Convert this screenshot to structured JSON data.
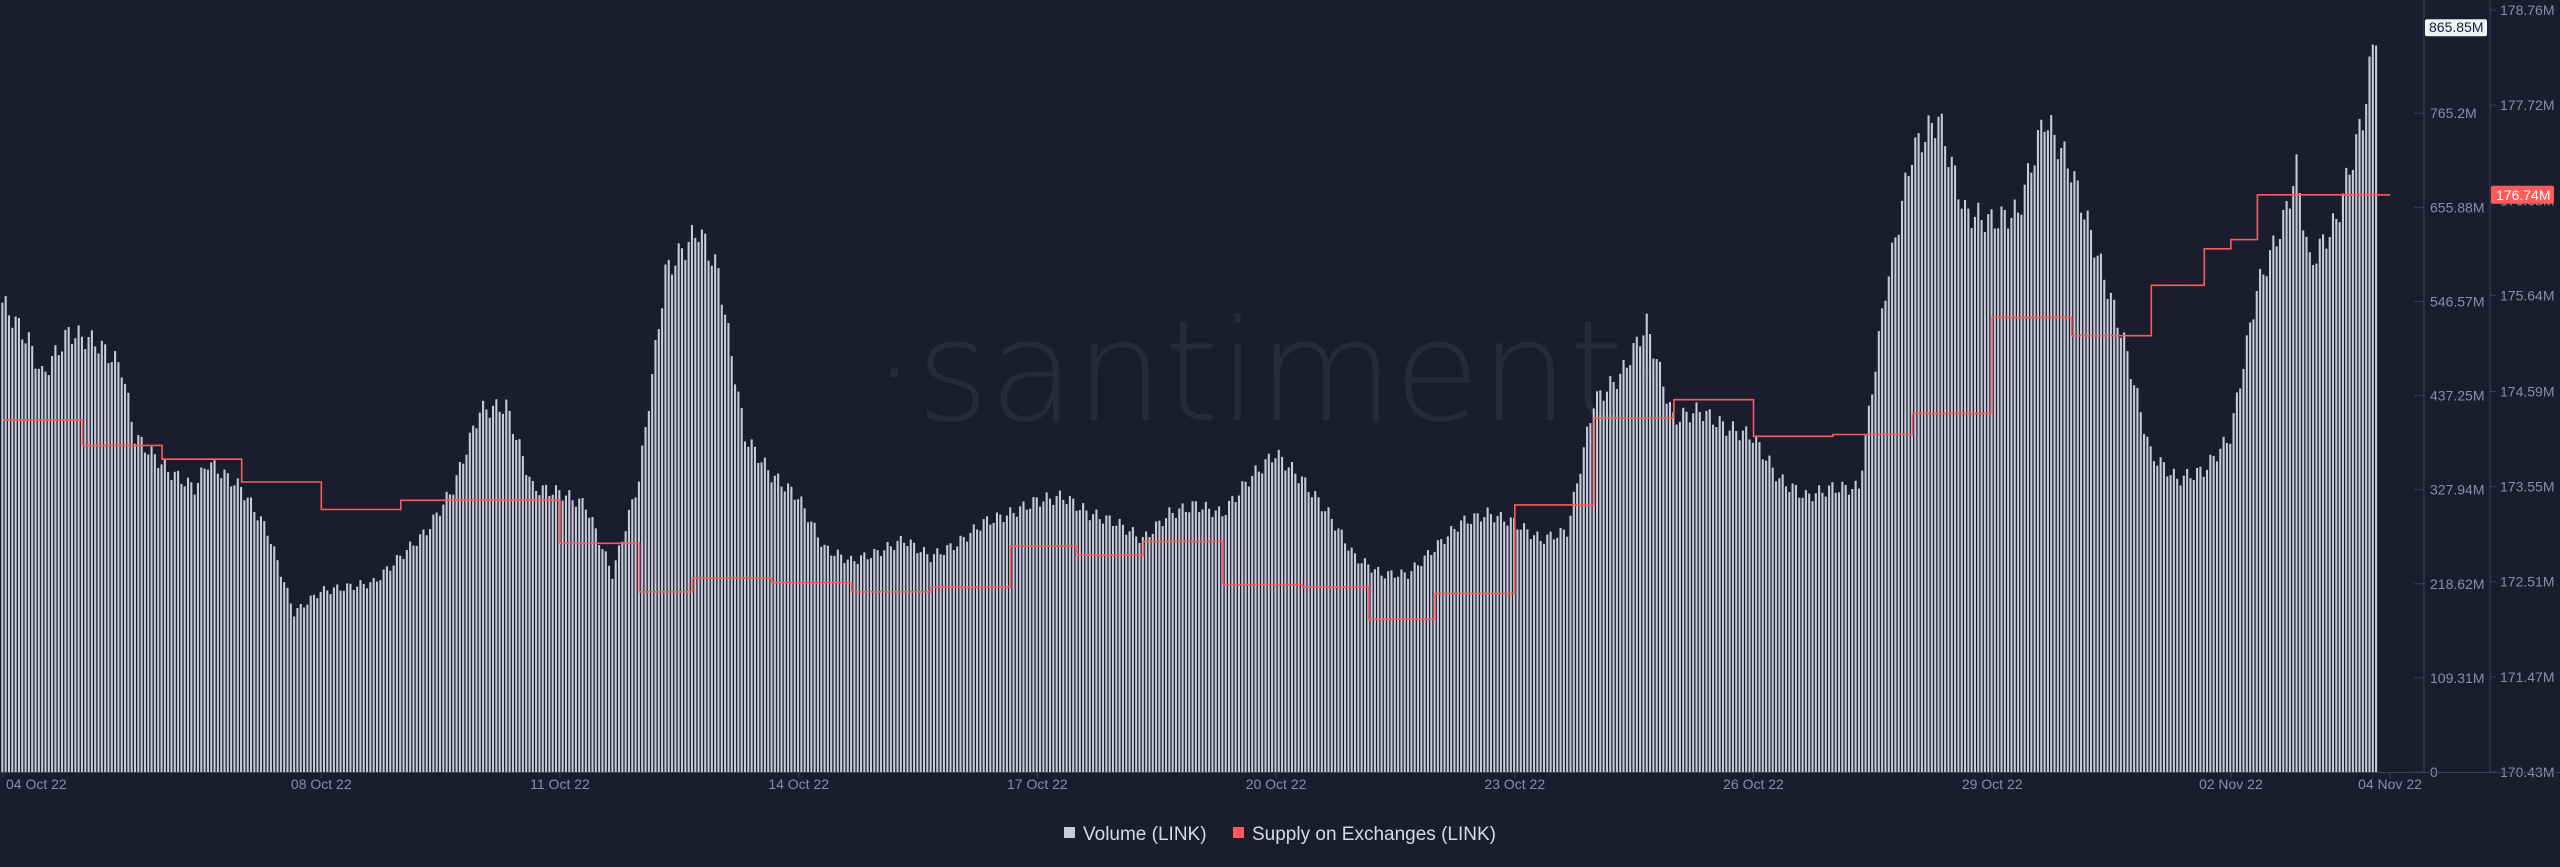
{
  "watermark": "·santiment·",
  "colors": {
    "background": "#191d2e",
    "volume": "#c9cbd9",
    "supply": "#ff5b5b",
    "axis_text": "#8a8fa3",
    "axis_line": "#3a3f52"
  },
  "chart_data": {
    "type": "bar",
    "x_tick_labels": [
      "04 Oct 22",
      "08 Oct 22",
      "11 Oct 22",
      "14 Oct 22",
      "17 Oct 22",
      "20 Oct 22",
      "23 Oct 22",
      "26 Oct 22",
      "29 Oct 22",
      "02 Nov 22",
      "04 Nov 22"
    ],
    "x_ticks_hours": [
      0,
      96,
      168,
      240,
      312,
      384,
      456,
      528,
      600,
      672,
      720
    ],
    "x_range_hours": [
      0,
      720
    ],
    "left_axis": {
      "series": "Volume (LINK)",
      "tick_labels": [
        "0",
        "109.31M",
        "218.62M",
        "327.94M",
        "437.25M",
        "546.57M",
        "655.88M",
        "765.2M"
      ],
      "tick_values": [
        0,
        109.31,
        218.62,
        327.94,
        437.25,
        546.57,
        655.88,
        765.2
      ],
      "range": [
        0,
        885
      ],
      "last_value_label": "865.85M"
    },
    "right_axis": {
      "series": "Supply on Exchanges (LINK)",
      "tick_labels": [
        "170.43M",
        "171.47M",
        "172.51M",
        "173.55M",
        "174.59M",
        "175.64M",
        "176.68M",
        "177.72M",
        "178.76M"
      ],
      "tick_values": [
        170.43,
        171.47,
        172.51,
        173.55,
        174.59,
        175.64,
        176.68,
        177.72,
        178.76
      ],
      "range": [
        170.43,
        178.76
      ],
      "last_value_label": "176.74M"
    },
    "series": [
      {
        "name": "Volume (LINK)",
        "type": "bar",
        "unit": "M LINK",
        "points": [
          [
            0,
            545
          ],
          [
            8,
            500
          ],
          [
            12,
            460
          ],
          [
            20,
            510
          ],
          [
            28,
            500
          ],
          [
            36,
            470
          ],
          [
            40,
            390
          ],
          [
            50,
            350
          ],
          [
            58,
            330
          ],
          [
            62,
            360
          ],
          [
            72,
            330
          ],
          [
            80,
            280
          ],
          [
            88,
            185
          ],
          [
            96,
            210
          ],
          [
            104,
            215
          ],
          [
            112,
            220
          ],
          [
            120,
            250
          ],
          [
            128,
            280
          ],
          [
            136,
            330
          ],
          [
            144,
            420
          ],
          [
            152,
            425
          ],
          [
            160,
            330
          ],
          [
            168,
            325
          ],
          [
            176,
            310
          ],
          [
            184,
            230
          ],
          [
            192,
            340
          ],
          [
            200,
            580
          ],
          [
            210,
            630
          ],
          [
            216,
            580
          ],
          [
            224,
            390
          ],
          [
            232,
            345
          ],
          [
            240,
            320
          ],
          [
            248,
            260
          ],
          [
            256,
            245
          ],
          [
            264,
            255
          ],
          [
            272,
            270
          ],
          [
            280,
            250
          ],
          [
            288,
            265
          ],
          [
            296,
            290
          ],
          [
            304,
            300
          ],
          [
            312,
            315
          ],
          [
            320,
            320
          ],
          [
            328,
            300
          ],
          [
            336,
            290
          ],
          [
            344,
            270
          ],
          [
            352,
            300
          ],
          [
            360,
            310
          ],
          [
            368,
            300
          ],
          [
            376,
            340
          ],
          [
            384,
            370
          ],
          [
            392,
            340
          ],
          [
            400,
            300
          ],
          [
            408,
            250
          ],
          [
            416,
            230
          ],
          [
            424,
            230
          ],
          [
            432,
            260
          ],
          [
            440,
            290
          ],
          [
            448,
            300
          ],
          [
            456,
            290
          ],
          [
            464,
            270
          ],
          [
            472,
            280
          ],
          [
            480,
            430
          ],
          [
            488,
            460
          ],
          [
            496,
            520
          ],
          [
            504,
            410
          ],
          [
            512,
            420
          ],
          [
            520,
            400
          ],
          [
            528,
            390
          ],
          [
            536,
            340
          ],
          [
            544,
            320
          ],
          [
            552,
            330
          ],
          [
            560,
            330
          ],
          [
            568,
            560
          ],
          [
            576,
            720
          ],
          [
            584,
            760
          ],
          [
            592,
            650
          ],
          [
            600,
            640
          ],
          [
            608,
            650
          ],
          [
            616,
            760
          ],
          [
            624,
            700
          ],
          [
            632,
            600
          ],
          [
            640,
            500
          ],
          [
            648,
            370
          ],
          [
            656,
            340
          ],
          [
            664,
            350
          ],
          [
            672,
            390
          ],
          [
            680,
            560
          ],
          [
            688,
            640
          ],
          [
            692,
            700
          ],
          [
            696,
            590
          ],
          [
            704,
            640
          ],
          [
            708,
            700
          ],
          [
            712,
            760
          ],
          [
            716,
            865
          ]
        ]
      },
      {
        "name": "Supply on Exchanges (LINK)",
        "type": "step",
        "unit": "M LINK",
        "points": [
          [
            0,
            174.28
          ],
          [
            24,
            174.0
          ],
          [
            48,
            173.85
          ],
          [
            72,
            173.6
          ],
          [
            96,
            173.3
          ],
          [
            120,
            173.4
          ],
          [
            144,
            173.4
          ],
          [
            168,
            172.93
          ],
          [
            192,
            172.4
          ],
          [
            208,
            172.55
          ],
          [
            232,
            172.5
          ],
          [
            256,
            172.4
          ],
          [
            280,
            172.45
          ],
          [
            304,
            172.9
          ],
          [
            324,
            172.8
          ],
          [
            344,
            172.95
          ],
          [
            368,
            172.48
          ],
          [
            392,
            172.45
          ],
          [
            412,
            172.1
          ],
          [
            432,
            172.38
          ],
          [
            456,
            173.35
          ],
          [
            480,
            174.3
          ],
          [
            504,
            174.5
          ],
          [
            528,
            174.1
          ],
          [
            552,
            174.12
          ],
          [
            576,
            174.35
          ],
          [
            600,
            175.4
          ],
          [
            624,
            175.2
          ],
          [
            648,
            175.75
          ],
          [
            664,
            176.15
          ],
          [
            672,
            176.25
          ],
          [
            680,
            176.74
          ]
        ]
      }
    ],
    "legend": [
      "Volume (LINK)",
      "Supply on Exchanges (LINK)"
    ],
    "legend_position": "bottom-center",
    "grid": false
  }
}
